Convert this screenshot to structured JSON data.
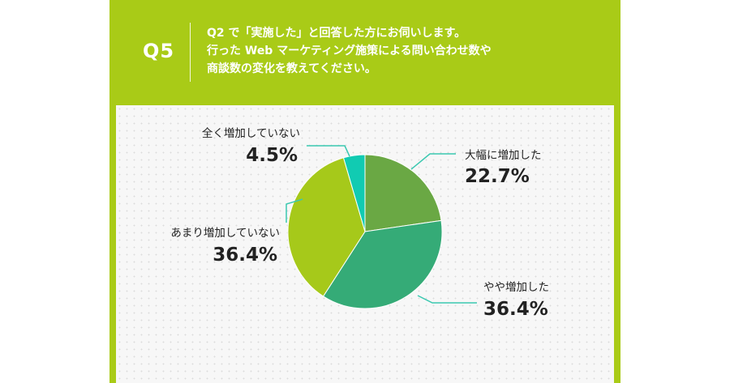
{
  "question": {
    "number": "Q5",
    "lines": [
      "Q2 で「実施した」と回答した方にお伺いします。",
      "行った Web マーケティング施策による問い合わせ数や",
      "商談数の変化を教えてください。"
    ]
  },
  "colors": {
    "card": "#a9cb17",
    "panel": "#f7f7f7",
    "leader": "#3ac8b0"
  },
  "chart_data": {
    "type": "pie",
    "slices": [
      {
        "label": "大幅に増加した",
        "value": 22.7,
        "value_label": "22.7%",
        "color": "#6aa844"
      },
      {
        "label": "やや増加した",
        "value": 36.4,
        "value_label": "36.4%",
        "color": "#35ab77"
      },
      {
        "label": "あまり増加していない",
        "value": 36.4,
        "value_label": "36.4%",
        "color": "#a6c91a"
      },
      {
        "label": "全く増加していない",
        "value": 4.5,
        "value_label": "4.5%",
        "color": "#11cbb2"
      }
    ]
  }
}
